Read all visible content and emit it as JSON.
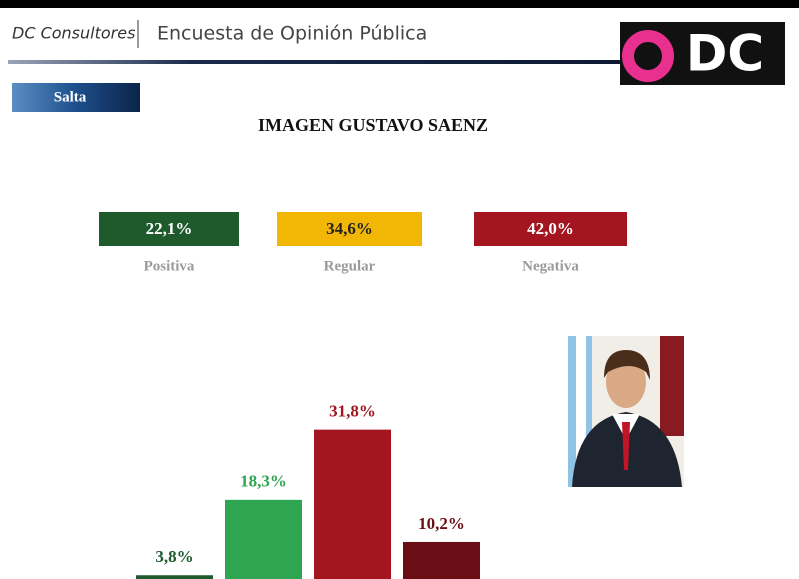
{
  "header": {
    "brand": "DC Consultores",
    "title": "Encuesta de Opinión Pública",
    "logo": "DC",
    "region": "Salta"
  },
  "summary": [
    {
      "value": "22,1%",
      "label": "Positiva",
      "color": "#1e5a2c"
    },
    {
      "value": "34,6%",
      "label": "Regular",
      "color": "#f2b705"
    },
    {
      "value": "42,0%",
      "label": "Negativa",
      "color": "#a3161f"
    }
  ],
  "chart_data": {
    "type": "bar",
    "title": "IMAGEN  GUSTAVO SAENZ",
    "values": [
      3.8,
      18.3,
      31.8,
      10.2
    ],
    "value_labels": [
      "3,8%",
      "18,3%",
      "31,8%",
      "10,2%"
    ],
    "colors": [
      "#1e5a2c",
      "#2fa552",
      "#a3161f",
      "#6b0d14"
    ]
  }
}
